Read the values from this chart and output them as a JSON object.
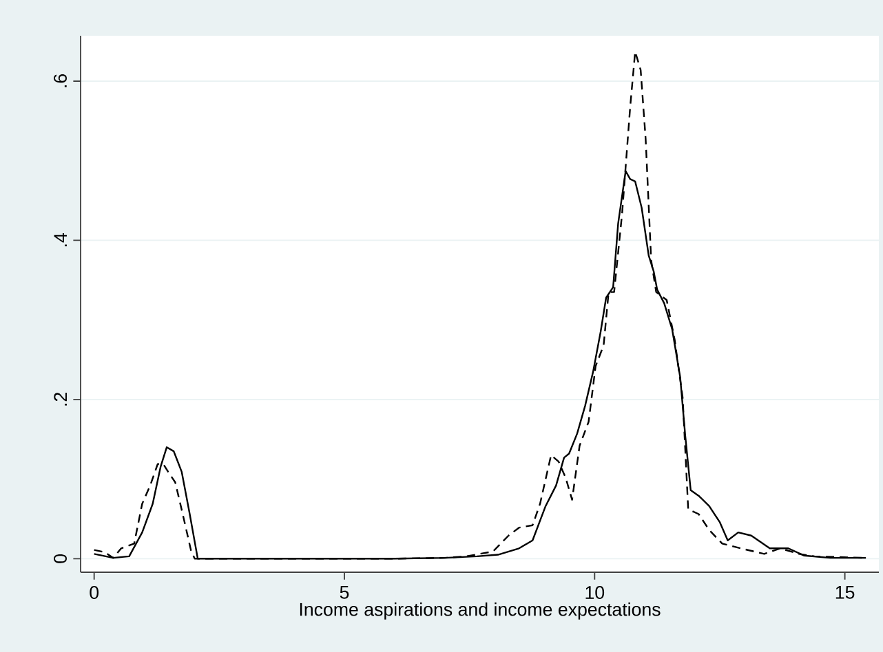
{
  "chart_data": {
    "type": "line",
    "xlabel": "Income aspirations and income expectations",
    "xlim": [
      -0.27,
      15.68
    ],
    "ylim": [
      -0.017,
      0.657
    ],
    "xticks": [
      0,
      5,
      10,
      15
    ],
    "yticks": [
      0,
      {
        "value": 0.2,
        "label": ".2"
      },
      {
        "value": 0.4,
        "label": ".4"
      },
      {
        "value": 0.6,
        "label": ".6"
      }
    ],
    "grid": "y",
    "marker": "none",
    "series": [
      {
        "color": "#000000",
        "line_style": "solid",
        "x": [
          0,
          0.38,
          0.7,
          0.96,
          1.17,
          1.33,
          1.45,
          1.59,
          1.75,
          1.91,
          2.07,
          3,
          4,
          5,
          6,
          7,
          7.65,
          8.07,
          8.49,
          8.76,
          9.02,
          9.23,
          9.39,
          9.49,
          9.65,
          9.81,
          9.97,
          10.12,
          10.23,
          10.37,
          10.47,
          10.62,
          10.71,
          10.81,
          10.94,
          11.08,
          11.18,
          11.25,
          11.39,
          11.55,
          11.71,
          11.81,
          11.92,
          12.08,
          12.29,
          12.5,
          12.66,
          12.87,
          13.13,
          13.5,
          13.87,
          14.18,
          14.71,
          15.42
        ],
        "values": [
          0.006,
          0.001,
          0.003,
          0.033,
          0.069,
          0.116,
          0.14,
          0.135,
          0.109,
          0.056,
          0,
          0,
          0,
          0,
          0,
          0.001,
          0.003,
          0.005,
          0.013,
          0.023,
          0.066,
          0.092,
          0.127,
          0.132,
          0.157,
          0.192,
          0.235,
          0.285,
          0.328,
          0.341,
          0.421,
          0.487,
          0.477,
          0.474,
          0.441,
          0.381,
          0.361,
          0.338,
          0.321,
          0.288,
          0.228,
          0.155,
          0.086,
          0.079,
          0.066,
          0.046,
          0.023,
          0.033,
          0.029,
          0.013,
          0.013,
          0.004,
          0.001,
          0.001
        ]
      },
      {
        "color": "#000000",
        "line_style": "dashed",
        "x": [
          0,
          0.22,
          0.38,
          0.54,
          0.8,
          0.96,
          1.12,
          1.27,
          1.38,
          1.48,
          1.62,
          1.77,
          1.94,
          2.01,
          3,
          4,
          5,
          6,
          7,
          7.44,
          7.97,
          8.28,
          8.49,
          8.76,
          8.91,
          9.13,
          9.28,
          9.42,
          9.55,
          9.7,
          9.88,
          10.02,
          10.18,
          10.28,
          10.39,
          10.55,
          10.71,
          10.81,
          10.92,
          11.02,
          11.13,
          11.23,
          11.44,
          11.6,
          11.76,
          11.87,
          12.08,
          12.29,
          12.55,
          12.92,
          13.39,
          13.71,
          14.08,
          14.39,
          15.42
        ],
        "values": [
          0.011,
          0.008,
          0.001,
          0.013,
          0.019,
          0.069,
          0.092,
          0.119,
          0.119,
          0.109,
          0.096,
          0.056,
          0.009,
          0,
          0,
          0,
          0,
          0,
          0.001,
          0.003,
          0.009,
          0.029,
          0.039,
          0.042,
          0.069,
          0.13,
          0.122,
          0.102,
          0.074,
          0.142,
          0.172,
          0.242,
          0.268,
          0.335,
          0.335,
          0.434,
          0.567,
          0.637,
          0.614,
          0.527,
          0.375,
          0.335,
          0.325,
          0.275,
          0.202,
          0.062,
          0.056,
          0.036,
          0.019,
          0.013,
          0.006,
          0.013,
          0.006,
          0.003,
          0.001
        ]
      }
    ]
  }
}
